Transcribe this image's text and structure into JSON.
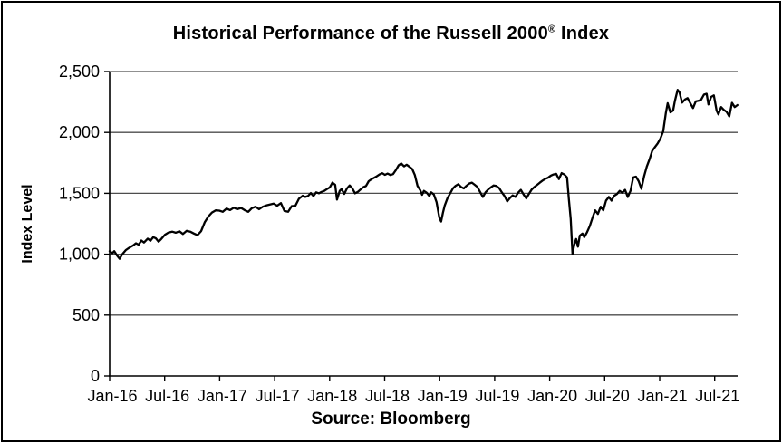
{
  "header": {
    "title_main": "Historical Performance of the Russell 2000",
    "title_sup": "®",
    "title_tail": " Index"
  },
  "chart_data": {
    "type": "line",
    "title": "Historical Performance of the Russell 2000® Index",
    "xlabel": "",
    "ylabel": "Index Level",
    "source": "Source: Bloomberg",
    "legend": "none",
    "grid": "horizontal",
    "background": "#ffffff",
    "border_color": "#000000",
    "line_color": "#000000",
    "grid_color": "#4d4d4d",
    "axis_color": "#000000",
    "x_unit": "months since Jan-2016",
    "xlim": [
      0,
      68.5
    ],
    "ylim": [
      0,
      2500
    ],
    "y_ticks": [
      0,
      500,
      1000,
      1500,
      2000,
      2500
    ],
    "y_tick_labels": [
      "0",
      "500",
      "1,000",
      "1,500",
      "2,000",
      "2,500"
    ],
    "x_ticks_months": [
      0,
      6,
      12,
      18,
      24,
      30,
      36,
      42,
      48,
      54,
      60,
      66
    ],
    "x_tick_labels": [
      "Jan-16",
      "Jul-16",
      "Jan-17",
      "Jul-17",
      "Jan-18",
      "Jul-18",
      "Jan-19",
      "Jul-19",
      "Jan-20",
      "Jul-20",
      "Jan-21",
      "Jul-21"
    ],
    "series": [
      {
        "name": "Russell 2000 Index Level",
        "points": [
          [
            0,
            1025
          ],
          [
            0.3,
            1008
          ],
          [
            0.5,
            1025
          ],
          [
            0.79,
            990
          ],
          [
            1.09,
            962
          ],
          [
            1.38,
            1000
          ],
          [
            1.78,
            1035
          ],
          [
            2.17,
            1055
          ],
          [
            2.57,
            1072
          ],
          [
            2.87,
            1090
          ],
          [
            3.16,
            1078
          ],
          [
            3.46,
            1112
          ],
          [
            3.75,
            1096
          ],
          [
            4.15,
            1128
          ],
          [
            4.45,
            1110
          ],
          [
            4.74,
            1140
          ],
          [
            5.04,
            1130
          ],
          [
            5.34,
            1103
          ],
          [
            5.63,
            1125
          ],
          [
            6.03,
            1160
          ],
          [
            6.42,
            1178
          ],
          [
            6.82,
            1185
          ],
          [
            7.21,
            1176
          ],
          [
            7.61,
            1188
          ],
          [
            8,
            1166
          ],
          [
            8.4,
            1192
          ],
          [
            8.79,
            1185
          ],
          [
            9.19,
            1170
          ],
          [
            9.58,
            1156
          ],
          [
            9.98,
            1190
          ],
          [
            10.37,
            1262
          ],
          [
            10.77,
            1310
          ],
          [
            11.16,
            1342
          ],
          [
            11.56,
            1360
          ],
          [
            11.96,
            1358
          ],
          [
            12.35,
            1348
          ],
          [
            12.75,
            1375
          ],
          [
            13.14,
            1362
          ],
          [
            13.54,
            1382
          ],
          [
            13.93,
            1370
          ],
          [
            14.33,
            1380
          ],
          [
            14.72,
            1362
          ],
          [
            15.12,
            1348
          ],
          [
            15.51,
            1378
          ],
          [
            15.91,
            1390
          ],
          [
            16.3,
            1370
          ],
          [
            16.7,
            1390
          ],
          [
            17.09,
            1400
          ],
          [
            17.49,
            1408
          ],
          [
            17.89,
            1415
          ],
          [
            18.28,
            1398
          ],
          [
            18.68,
            1420
          ],
          [
            19.07,
            1355
          ],
          [
            19.47,
            1348
          ],
          [
            19.86,
            1395
          ],
          [
            20.26,
            1398
          ],
          [
            20.65,
            1455
          ],
          [
            21.05,
            1480
          ],
          [
            21.34,
            1470
          ],
          [
            21.64,
            1478
          ],
          [
            21.94,
            1502
          ],
          [
            22.23,
            1478
          ],
          [
            22.53,
            1508
          ],
          [
            22.83,
            1500
          ],
          [
            23.12,
            1512
          ],
          [
            23.42,
            1520
          ],
          [
            23.71,
            1535
          ],
          [
            24.01,
            1548
          ],
          [
            24.31,
            1588
          ],
          [
            24.6,
            1570
          ],
          [
            24.8,
            1448
          ],
          [
            25.1,
            1520
          ],
          [
            25.29,
            1535
          ],
          [
            25.59,
            1495
          ],
          [
            25.89,
            1540
          ],
          [
            26.18,
            1565
          ],
          [
            26.48,
            1540
          ],
          [
            26.77,
            1500
          ],
          [
            27.07,
            1512
          ],
          [
            27.37,
            1532
          ],
          [
            27.66,
            1550
          ],
          [
            27.96,
            1560
          ],
          [
            28.26,
            1600
          ],
          [
            28.55,
            1615
          ],
          [
            28.85,
            1628
          ],
          [
            29.14,
            1640
          ],
          [
            29.44,
            1655
          ],
          [
            29.74,
            1665
          ],
          [
            30.03,
            1652
          ],
          [
            30.33,
            1662
          ],
          [
            30.63,
            1650
          ],
          [
            30.92,
            1658
          ],
          [
            31.22,
            1690
          ],
          [
            31.52,
            1730
          ],
          [
            31.81,
            1745
          ],
          [
            32.11,
            1722
          ],
          [
            32.4,
            1735
          ],
          [
            32.7,
            1718
          ],
          [
            33,
            1700
          ],
          [
            33.29,
            1650
          ],
          [
            33.59,
            1560
          ],
          [
            33.88,
            1525
          ],
          [
            34.08,
            1488
          ],
          [
            34.28,
            1520
          ],
          [
            34.58,
            1505
          ],
          [
            34.87,
            1478
          ],
          [
            35.07,
            1508
          ],
          [
            35.37,
            1490
          ],
          [
            35.66,
            1426
          ],
          [
            35.96,
            1302
          ],
          [
            36.16,
            1268
          ],
          [
            36.36,
            1340
          ],
          [
            36.55,
            1400
          ],
          [
            36.85,
            1460
          ],
          [
            37.15,
            1500
          ],
          [
            37.44,
            1540
          ],
          [
            37.74,
            1562
          ],
          [
            38.04,
            1575
          ],
          [
            38.33,
            1552
          ],
          [
            38.63,
            1540
          ],
          [
            38.93,
            1562
          ],
          [
            39.22,
            1580
          ],
          [
            39.52,
            1588
          ],
          [
            39.82,
            1570
          ],
          [
            40.11,
            1552
          ],
          [
            40.41,
            1512
          ],
          [
            40.71,
            1470
          ],
          [
            41,
            1508
          ],
          [
            41.3,
            1532
          ],
          [
            41.6,
            1550
          ],
          [
            41.89,
            1565
          ],
          [
            42.19,
            1560
          ],
          [
            42.48,
            1544
          ],
          [
            42.78,
            1508
          ],
          [
            43.08,
            1478
          ],
          [
            43.37,
            1434
          ],
          [
            43.67,
            1462
          ],
          [
            43.97,
            1483
          ],
          [
            44.26,
            1470
          ],
          [
            44.56,
            1505
          ],
          [
            44.86,
            1528
          ],
          [
            45.15,
            1490
          ],
          [
            45.45,
            1458
          ],
          [
            45.74,
            1495
          ],
          [
            46.04,
            1532
          ],
          [
            46.34,
            1552
          ],
          [
            46.63,
            1569
          ],
          [
            46.93,
            1588
          ],
          [
            47.23,
            1605
          ],
          [
            47.52,
            1618
          ],
          [
            47.82,
            1628
          ],
          [
            48.12,
            1645
          ],
          [
            48.41,
            1655
          ],
          [
            48.71,
            1660
          ],
          [
            49.01,
            1617
          ],
          [
            49.3,
            1666
          ],
          [
            49.6,
            1655
          ],
          [
            49.9,
            1630
          ],
          [
            50.09,
            1458
          ],
          [
            50.29,
            1290
          ],
          [
            50.49,
            1000
          ],
          [
            50.69,
            1080
          ],
          [
            50.89,
            1125
          ],
          [
            51.08,
            1062
          ],
          [
            51.28,
            1152
          ],
          [
            51.58,
            1170
          ],
          [
            51.78,
            1140
          ],
          [
            52.07,
            1180
          ],
          [
            52.37,
            1230
          ],
          [
            52.67,
            1300
          ],
          [
            52.96,
            1360
          ],
          [
            53.26,
            1330
          ],
          [
            53.56,
            1390
          ],
          [
            53.85,
            1360
          ],
          [
            54.15,
            1440
          ],
          [
            54.45,
            1470
          ],
          [
            54.74,
            1440
          ],
          [
            55.04,
            1480
          ],
          [
            55.34,
            1495
          ],
          [
            55.63,
            1520
          ],
          [
            55.93,
            1505
          ],
          [
            56.22,
            1528
          ],
          [
            56.52,
            1470
          ],
          [
            56.82,
            1520
          ],
          [
            57.11,
            1630
          ],
          [
            57.41,
            1637
          ],
          [
            57.71,
            1600
          ],
          [
            58,
            1537
          ],
          [
            58.3,
            1640
          ],
          [
            58.6,
            1720
          ],
          [
            58.89,
            1780
          ],
          [
            59.19,
            1850
          ],
          [
            59.49,
            1880
          ],
          [
            59.78,
            1910
          ],
          [
            60.08,
            1950
          ],
          [
            60.38,
            2010
          ],
          [
            60.67,
            2160
          ],
          [
            60.87,
            2240
          ],
          [
            61.17,
            2165
          ],
          [
            61.46,
            2180
          ],
          [
            61.66,
            2260
          ],
          [
            61.96,
            2350
          ],
          [
            62.15,
            2330
          ],
          [
            62.45,
            2245
          ],
          [
            62.75,
            2270
          ],
          [
            63.04,
            2282
          ],
          [
            63.34,
            2240
          ],
          [
            63.64,
            2200
          ],
          [
            63.93,
            2255
          ],
          [
            64.23,
            2260
          ],
          [
            64.53,
            2270
          ],
          [
            64.82,
            2310
          ],
          [
            65.12,
            2318
          ],
          [
            65.32,
            2230
          ],
          [
            65.61,
            2292
          ],
          [
            65.91,
            2304
          ],
          [
            66.21,
            2180
          ],
          [
            66.4,
            2148
          ],
          [
            66.7,
            2208
          ],
          [
            67,
            2185
          ],
          [
            67.29,
            2170
          ],
          [
            67.59,
            2132
          ],
          [
            67.89,
            2243
          ],
          [
            68.18,
            2208
          ],
          [
            68.48,
            2225
          ]
        ]
      }
    ]
  }
}
